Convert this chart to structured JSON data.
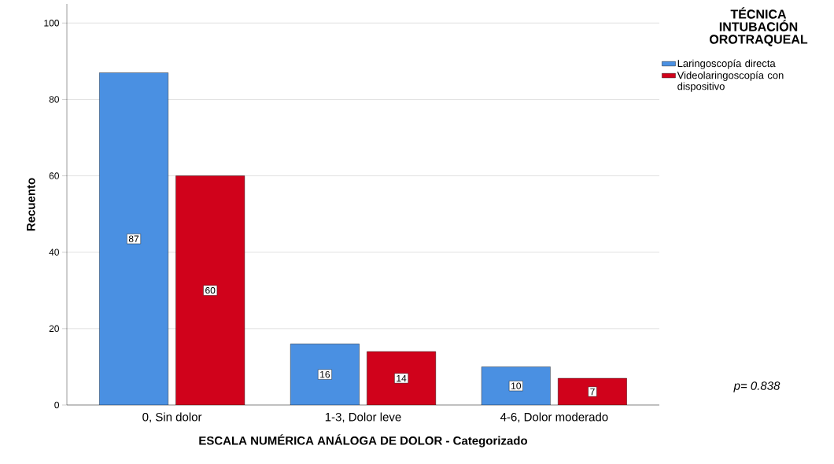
{
  "chart_data": {
    "type": "bar",
    "xlabel": "ESCALA NUMÉRICA ANÁLOGA DE DOLOR - Categorizado",
    "ylabel": "Recuento",
    "legend_title": "TÉCNICA INTUBACIÓN OROTRAQUEAL",
    "categories": [
      "0, Sin dolor",
      "1-3, Dolor leve",
      "4-6, Dolor moderado"
    ],
    "series": [
      {
        "name": "Laringoscopía directa",
        "color": "#4a90e2",
        "values": [
          87,
          16,
          10
        ]
      },
      {
        "name": "Videolaringoscopía con dispositivo",
        "color": "#d0021b",
        "values": [
          60,
          14,
          7
        ]
      }
    ],
    "ylim": [
      0,
      105
    ],
    "yticks": [
      0,
      20,
      40,
      60,
      80,
      100
    ],
    "grid": "y",
    "legend": "top right",
    "data_labels": true,
    "annotations": [
      "*p= 0.838*"
    ]
  }
}
